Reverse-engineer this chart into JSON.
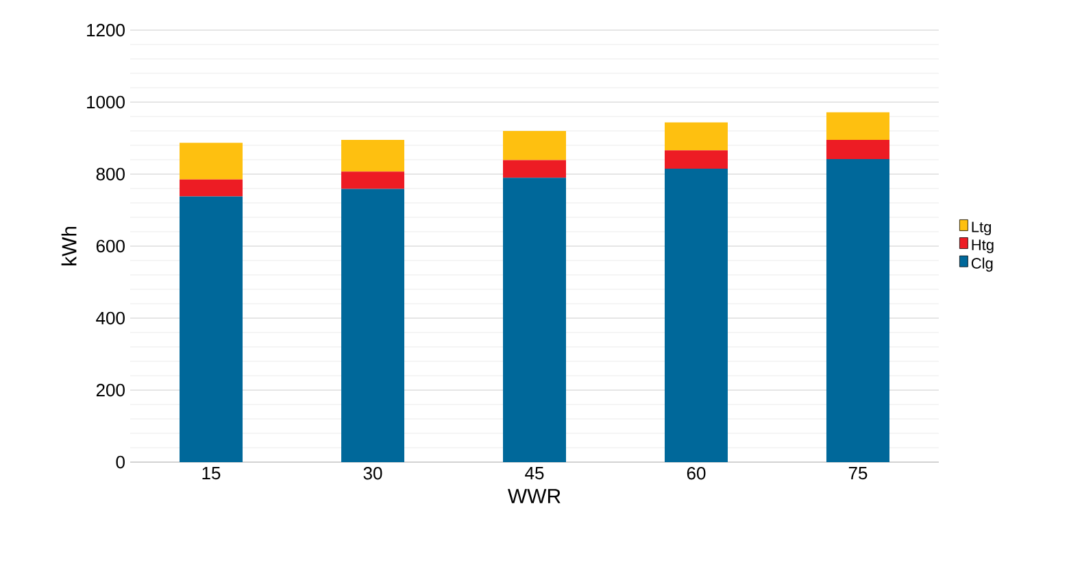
{
  "chart_data": {
    "type": "bar",
    "stacked": true,
    "xlabel": "WWR",
    "ylabel": "kWh",
    "categories": [
      "15",
      "30",
      "45",
      "60",
      "75"
    ],
    "series": [
      {
        "name": "Clg",
        "color": "#00689a",
        "values": [
          738,
          759,
          790,
          815,
          842
        ]
      },
      {
        "name": "Htg",
        "color": "#ed1c24",
        "values": [
          47,
          48,
          49,
          51,
          53
        ]
      },
      {
        "name": "Ltg",
        "color": "#fec010",
        "values": [
          102,
          88,
          81,
          78,
          77
        ]
      }
    ],
    "ylim": [
      0,
      1200
    ],
    "yticks": [
      0,
      200,
      400,
      600,
      800,
      1000,
      1200
    ],
    "grid": "y",
    "legend": "right"
  }
}
